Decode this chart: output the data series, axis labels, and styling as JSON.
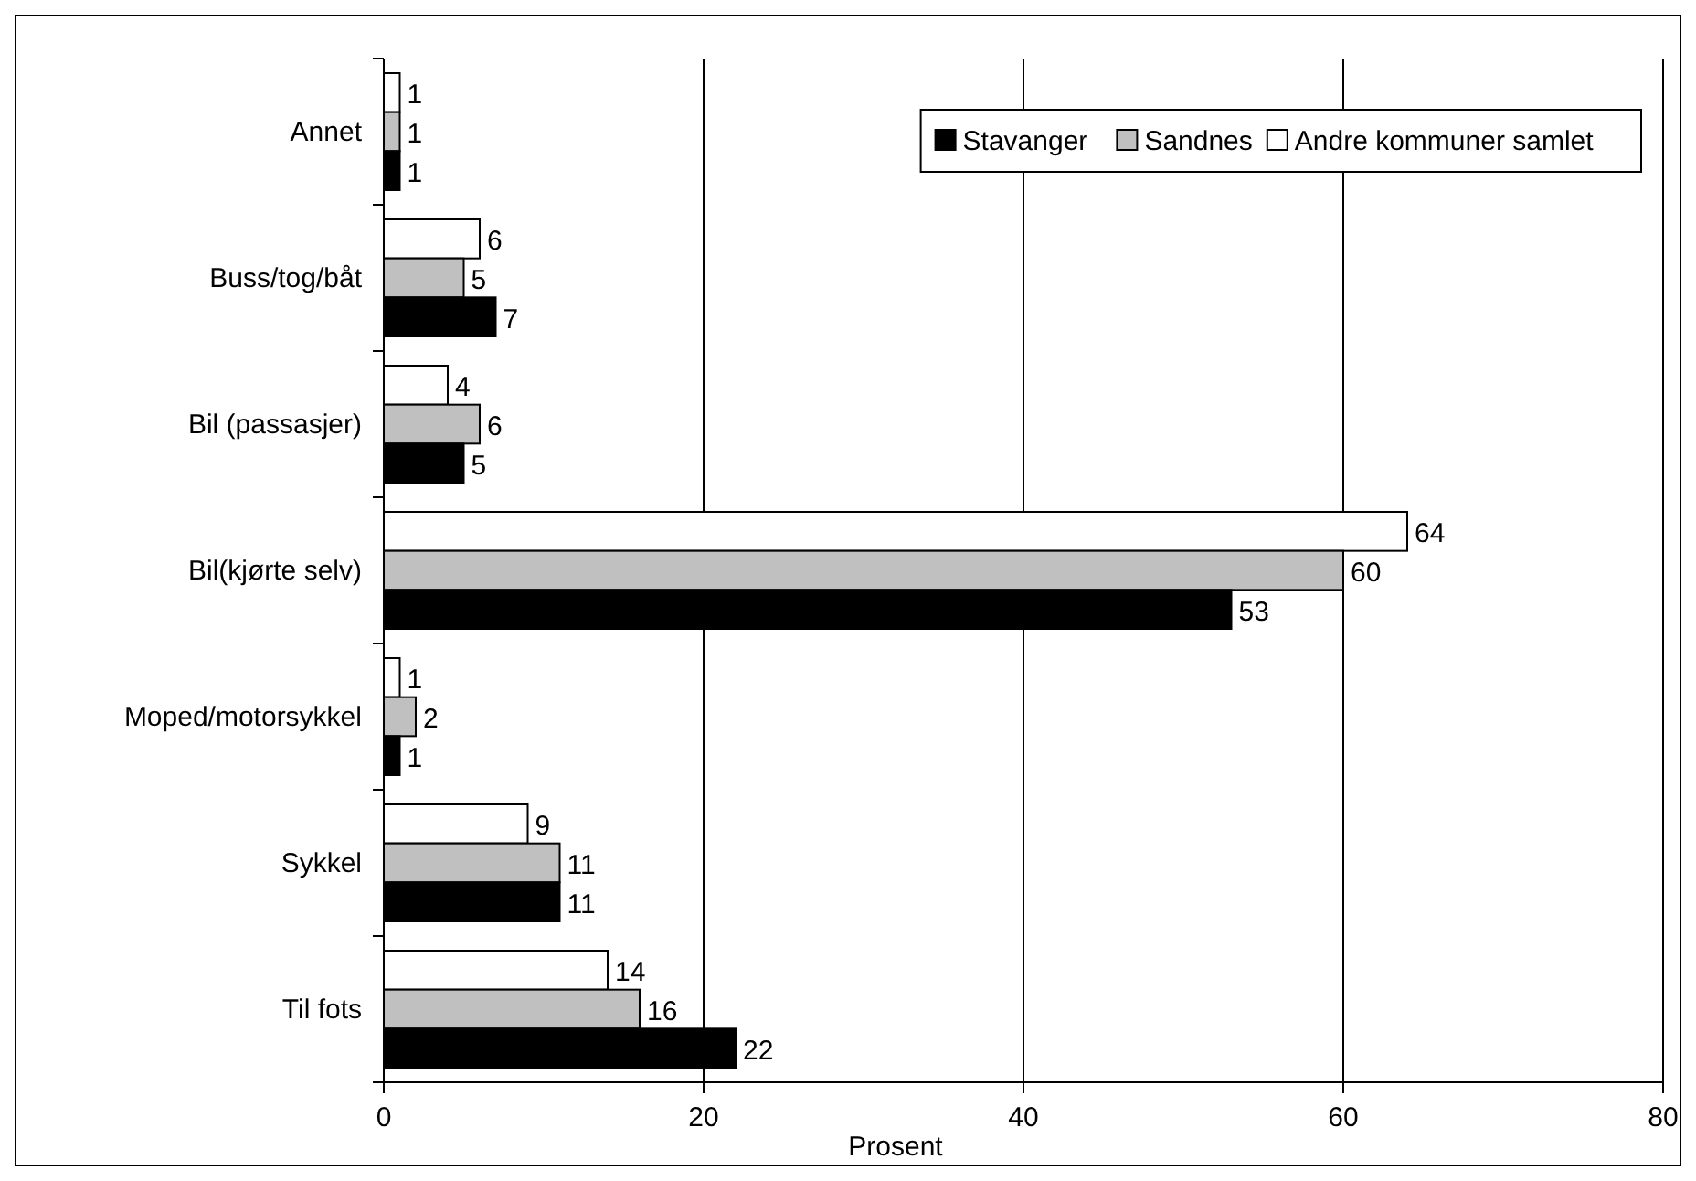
{
  "chart_data": {
    "type": "bar",
    "orientation": "horizontal",
    "xlabel": "Prosent",
    "categories": [
      "Annet",
      "Buss/tog/båt",
      "Bil (passasjer)",
      "Bil(kjørte selv)",
      "Moped/motorsykkel",
      "Sykkel",
      "Til fots"
    ],
    "series": [
      {
        "name": "Andre kommuner samlet",
        "color": "#ffffff",
        "values": [
          1,
          6,
          4,
          64,
          1,
          9,
          14
        ]
      },
      {
        "name": "Sandnes",
        "color": "#c0c0c0",
        "values": [
          1,
          5,
          6,
          60,
          2,
          11,
          16
        ]
      },
      {
        "name": "Stavanger",
        "color": "#000000",
        "values": [
          1,
          7,
          5,
          53,
          1,
          11,
          22
        ]
      }
    ],
    "xlim": [
      0,
      80
    ],
    "xticks": [
      0,
      20,
      40,
      60,
      80
    ],
    "grid": "x",
    "legend": "top right",
    "data_labels": true
  }
}
